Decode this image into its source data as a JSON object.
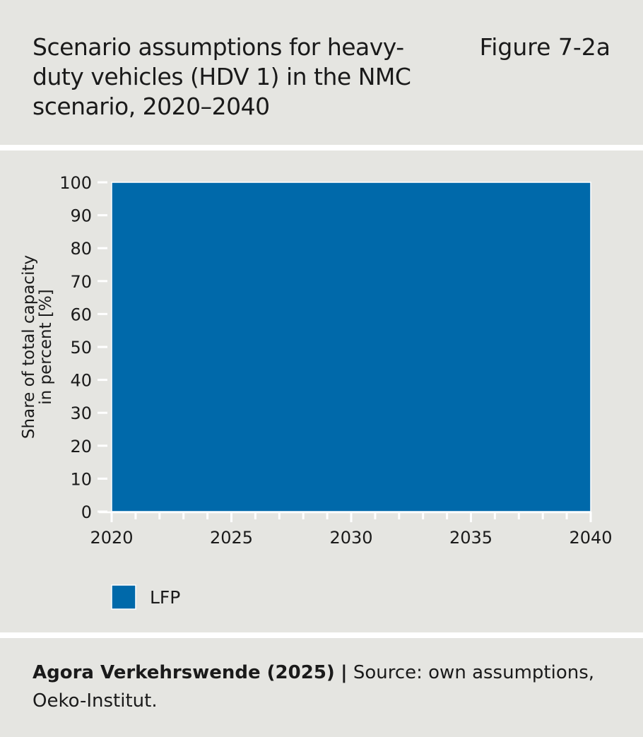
{
  "header": {
    "title": "Scenario assumptions for heavy-duty vehicles (HDV 1) in the NMC scenario, 2020–2040",
    "figure_label": "Figure 7-2a"
  },
  "footer": {
    "publisher": "Agora Verkehrswende (2025)",
    "separator": "|",
    "source": "Source: own assumptions, Oeko-Institut."
  },
  "chart_data": {
    "type": "area",
    "title": "Scenario assumptions for heavy-duty vehicles (HDV 1) in the NMC scenario, 2020–2040",
    "xlabel": "",
    "ylabel": "Share of total capacity in percent [%]",
    "x": [
      2020,
      2040
    ],
    "xlim": [
      2020,
      2040
    ],
    "ylim": [
      0,
      100
    ],
    "xticks": [
      2020,
      2025,
      2030,
      2035,
      2040
    ],
    "yticks": [
      0,
      10,
      20,
      30,
      40,
      50,
      60,
      70,
      80,
      90,
      100
    ],
    "grid": false,
    "legend_position": "bottom-left",
    "series": [
      {
        "name": "LFP",
        "values": [
          100,
          100
        ],
        "color": "#0069aa"
      }
    ]
  }
}
